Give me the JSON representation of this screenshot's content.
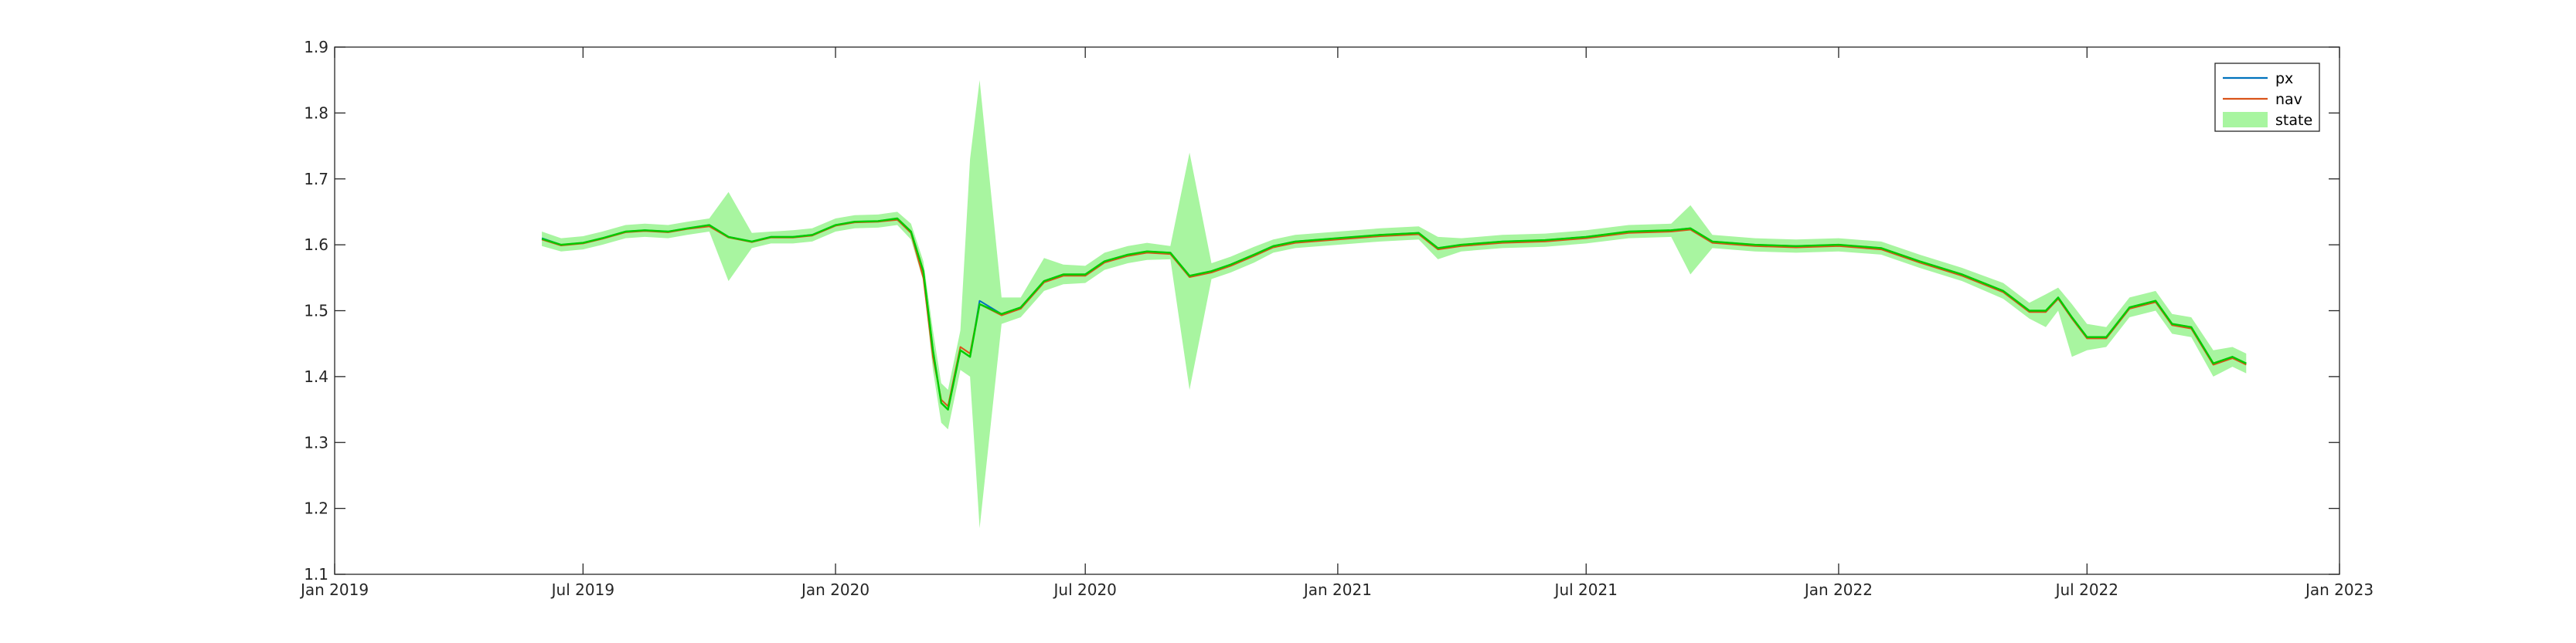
{
  "chart_data": {
    "type": "line",
    "title": "",
    "xlabel": "",
    "ylabel": "",
    "xlim": [
      "2019-01-01",
      "2023-01-01"
    ],
    "ylim": [
      1.1,
      1.9
    ],
    "grid": false,
    "legend_location": "top-right",
    "x_ticks": [
      {
        "date": "2019-01-01",
        "label": "Jan 2019"
      },
      {
        "date": "2019-07-01",
        "label": "Jul 2019"
      },
      {
        "date": "2020-01-01",
        "label": "Jan 2020"
      },
      {
        "date": "2020-07-01",
        "label": "Jul 2020"
      },
      {
        "date": "2021-01-01",
        "label": "Jan 2021"
      },
      {
        "date": "2021-07-01",
        "label": "Jul 2021"
      },
      {
        "date": "2022-01-01",
        "label": "Jan 2022"
      },
      {
        "date": "2022-07-01",
        "label": "Jul 2022"
      },
      {
        "date": "2023-01-01",
        "label": "Jan 2023"
      }
    ],
    "y_ticks": [
      {
        "value": 1.1,
        "label": "1.1"
      },
      {
        "value": 1.2,
        "label": "1.2"
      },
      {
        "value": 1.3,
        "label": "1.3"
      },
      {
        "value": 1.4,
        "label": "1.4"
      },
      {
        "value": 1.5,
        "label": "1.5"
      },
      {
        "value": 1.6,
        "label": "1.6"
      },
      {
        "value": 1.7,
        "label": "1.7"
      },
      {
        "value": 1.8,
        "label": "1.8"
      },
      {
        "value": 1.9,
        "label": "1.9"
      }
    ],
    "series": [
      {
        "name": "px",
        "color": "#0072BD",
        "x": [
          "2019-06-01",
          "2019-06-15",
          "2019-07-01",
          "2019-07-15",
          "2019-08-01",
          "2019-08-15",
          "2019-09-01",
          "2019-09-15",
          "2019-10-01",
          "2019-10-15",
          "2019-11-01",
          "2019-11-15",
          "2019-12-01",
          "2019-12-15",
          "2020-01-01",
          "2020-01-15",
          "2020-02-01",
          "2020-02-15",
          "2020-02-25",
          "2020-03-05",
          "2020-03-12",
          "2020-03-18",
          "2020-03-23",
          "2020-04-01",
          "2020-04-08",
          "2020-04-15",
          "2020-05-01",
          "2020-05-15",
          "2020-06-01",
          "2020-06-15",
          "2020-07-01",
          "2020-07-15",
          "2020-08-01",
          "2020-08-15",
          "2020-09-01",
          "2020-09-15",
          "2020-10-01",
          "2020-10-15",
          "2020-11-01",
          "2020-11-15",
          "2020-12-01",
          "2021-01-01",
          "2021-02-01",
          "2021-03-01",
          "2021-03-15",
          "2021-04-01",
          "2021-05-01",
          "2021-06-01",
          "2021-07-01",
          "2021-08-01",
          "2021-09-01",
          "2021-09-15",
          "2021-10-01",
          "2021-11-01",
          "2021-12-01",
          "2022-01-01",
          "2022-02-01",
          "2022-03-01",
          "2022-04-01",
          "2022-05-01",
          "2022-05-20",
          "2022-06-01",
          "2022-06-10",
          "2022-06-20",
          "2022-07-01",
          "2022-07-15",
          "2022-08-01",
          "2022-08-20",
          "2022-09-01",
          "2022-09-15",
          "2022-10-01",
          "2022-10-15",
          "2022-10-25"
        ],
        "values": [
          1.61,
          1.6,
          1.603,
          1.61,
          1.62,
          1.622,
          1.62,
          1.625,
          1.63,
          1.612,
          1.605,
          1.612,
          1.612,
          1.615,
          1.63,
          1.635,
          1.636,
          1.64,
          1.62,
          1.56,
          1.44,
          1.36,
          1.35,
          1.44,
          1.43,
          1.515,
          1.495,
          1.505,
          1.545,
          1.555,
          1.555,
          1.575,
          1.585,
          1.59,
          1.588,
          1.553,
          1.56,
          1.57,
          1.585,
          1.598,
          1.605,
          1.61,
          1.615,
          1.618,
          1.595,
          1.6,
          1.605,
          1.607,
          1.612,
          1.62,
          1.622,
          1.625,
          1.605,
          1.6,
          1.598,
          1.6,
          1.595,
          1.575,
          1.555,
          1.53,
          1.5,
          1.5,
          1.52,
          1.49,
          1.46,
          1.46,
          1.505,
          1.515,
          1.48,
          1.475,
          1.42,
          1.43,
          1.42
        ]
      },
      {
        "name": "nav",
        "color": "#D95319",
        "x": [
          "2019-06-01",
          "2019-06-15",
          "2019-07-01",
          "2019-07-15",
          "2019-08-01",
          "2019-08-15",
          "2019-09-01",
          "2019-09-15",
          "2019-10-01",
          "2019-10-15",
          "2019-11-01",
          "2019-11-15",
          "2019-12-01",
          "2019-12-15",
          "2020-01-01",
          "2020-01-15",
          "2020-02-01",
          "2020-02-15",
          "2020-02-25",
          "2020-03-05",
          "2020-03-12",
          "2020-03-18",
          "2020-03-23",
          "2020-04-01",
          "2020-04-08",
          "2020-04-15",
          "2020-05-01",
          "2020-05-15",
          "2020-06-01",
          "2020-06-15",
          "2020-07-01",
          "2020-07-15",
          "2020-08-01",
          "2020-08-15",
          "2020-09-01",
          "2020-09-15",
          "2020-10-01",
          "2020-10-15",
          "2020-11-01",
          "2020-11-15",
          "2020-12-01",
          "2021-01-01",
          "2021-02-01",
          "2021-03-01",
          "2021-03-15",
          "2021-04-01",
          "2021-05-01",
          "2021-06-01",
          "2021-07-01",
          "2021-08-01",
          "2021-09-01",
          "2021-09-15",
          "2021-10-01",
          "2021-11-01",
          "2021-12-01",
          "2022-01-01",
          "2022-02-01",
          "2022-03-01",
          "2022-04-01",
          "2022-05-01",
          "2022-05-20",
          "2022-06-01",
          "2022-06-10",
          "2022-06-20",
          "2022-07-01",
          "2022-07-15",
          "2022-08-01",
          "2022-08-20",
          "2022-09-01",
          "2022-09-15",
          "2022-10-01",
          "2022-10-15",
          "2022-10-25"
        ],
        "values": [
          1.608,
          1.599,
          1.602,
          1.609,
          1.619,
          1.621,
          1.619,
          1.624,
          1.628,
          1.611,
          1.604,
          1.611,
          1.611,
          1.614,
          1.629,
          1.634,
          1.635,
          1.638,
          1.618,
          1.55,
          1.43,
          1.365,
          1.355,
          1.445,
          1.435,
          1.51,
          1.493,
          1.503,
          1.543,
          1.553,
          1.553,
          1.573,
          1.583,
          1.588,
          1.586,
          1.551,
          1.558,
          1.568,
          1.583,
          1.596,
          1.603,
          1.608,
          1.613,
          1.616,
          1.593,
          1.598,
          1.603,
          1.605,
          1.61,
          1.618,
          1.62,
          1.623,
          1.603,
          1.598,
          1.596,
          1.598,
          1.593,
          1.573,
          1.553,
          1.528,
          1.498,
          1.498,
          1.518,
          1.488,
          1.458,
          1.458,
          1.503,
          1.513,
          1.478,
          1.473,
          1.418,
          1.428,
          1.418
        ]
      }
    ],
    "band": {
      "name": "state",
      "color": "#A8F5A0",
      "line_color": "#00CC00",
      "x": [
        "2019-06-01",
        "2019-06-15",
        "2019-07-01",
        "2019-07-15",
        "2019-08-01",
        "2019-08-15",
        "2019-09-01",
        "2019-09-15",
        "2019-10-01",
        "2019-10-15",
        "2019-11-01",
        "2019-11-15",
        "2019-12-01",
        "2019-12-15",
        "2020-01-01",
        "2020-01-15",
        "2020-02-01",
        "2020-02-15",
        "2020-02-25",
        "2020-03-05",
        "2020-03-12",
        "2020-03-18",
        "2020-03-23",
        "2020-04-01",
        "2020-04-08",
        "2020-04-15",
        "2020-05-01",
        "2020-05-15",
        "2020-06-01",
        "2020-06-15",
        "2020-07-01",
        "2020-07-15",
        "2020-08-01",
        "2020-08-15",
        "2020-09-01",
        "2020-09-15",
        "2020-10-01",
        "2020-10-15",
        "2020-11-01",
        "2020-11-15",
        "2020-12-01",
        "2021-01-01",
        "2021-02-01",
        "2021-03-01",
        "2021-03-15",
        "2021-04-01",
        "2021-05-01",
        "2021-06-01",
        "2021-07-01",
        "2021-08-01",
        "2021-09-01",
        "2021-09-15",
        "2021-10-01",
        "2021-11-01",
        "2021-12-01",
        "2022-01-01",
        "2022-02-01",
        "2022-03-01",
        "2022-04-01",
        "2022-05-01",
        "2022-05-20",
        "2022-06-01",
        "2022-06-10",
        "2022-06-20",
        "2022-07-01",
        "2022-07-15",
        "2022-08-01",
        "2022-08-20",
        "2022-09-01",
        "2022-09-15",
        "2022-10-01",
        "2022-10-15",
        "2022-10-25"
      ],
      "center": [
        1.609,
        1.6,
        1.603,
        1.61,
        1.62,
        1.622,
        1.62,
        1.625,
        1.63,
        1.612,
        1.605,
        1.612,
        1.612,
        1.615,
        1.63,
        1.635,
        1.636,
        1.64,
        1.62,
        1.56,
        1.44,
        1.36,
        1.35,
        1.44,
        1.43,
        1.51,
        1.495,
        1.505,
        1.545,
        1.555,
        1.555,
        1.575,
        1.585,
        1.59,
        1.588,
        1.553,
        1.56,
        1.57,
        1.585,
        1.598,
        1.605,
        1.61,
        1.615,
        1.618,
        1.595,
        1.6,
        1.605,
        1.607,
        1.612,
        1.62,
        1.622,
        1.625,
        1.605,
        1.6,
        1.598,
        1.6,
        1.595,
        1.575,
        1.555,
        1.53,
        1.5,
        1.5,
        1.52,
        1.49,
        1.46,
        1.46,
        1.505,
        1.515,
        1.48,
        1.475,
        1.42,
        1.43,
        1.42
      ],
      "upper": [
        1.62,
        1.61,
        1.613,
        1.62,
        1.63,
        1.632,
        1.63,
        1.635,
        1.64,
        1.68,
        1.618,
        1.62,
        1.622,
        1.625,
        1.64,
        1.645,
        1.646,
        1.65,
        1.632,
        1.575,
        1.47,
        1.39,
        1.38,
        1.47,
        1.73,
        1.85,
        1.52,
        1.52,
        1.58,
        1.57,
        1.568,
        1.588,
        1.598,
        1.603,
        1.598,
        1.74,
        1.572,
        1.582,
        1.597,
        1.608,
        1.615,
        1.62,
        1.625,
        1.628,
        1.612,
        1.61,
        1.615,
        1.617,
        1.622,
        1.63,
        1.632,
        1.66,
        1.615,
        1.61,
        1.608,
        1.61,
        1.605,
        1.585,
        1.565,
        1.542,
        1.512,
        1.525,
        1.535,
        1.51,
        1.48,
        1.475,
        1.52,
        1.53,
        1.495,
        1.49,
        1.44,
        1.445,
        1.435
      ],
      "lower": [
        1.598,
        1.59,
        1.593,
        1.6,
        1.61,
        1.612,
        1.61,
        1.615,
        1.62,
        1.545,
        1.595,
        1.602,
        1.602,
        1.605,
        1.62,
        1.625,
        1.626,
        1.63,
        1.608,
        1.545,
        1.41,
        1.33,
        1.32,
        1.41,
        1.4,
        1.17,
        1.48,
        1.49,
        1.53,
        1.54,
        1.542,
        1.562,
        1.572,
        1.577,
        1.578,
        1.38,
        1.548,
        1.558,
        1.573,
        1.588,
        1.595,
        1.6,
        1.605,
        1.608,
        1.578,
        1.59,
        1.595,
        1.597,
        1.602,
        1.61,
        1.612,
        1.555,
        1.595,
        1.59,
        1.588,
        1.59,
        1.585,
        1.565,
        1.545,
        1.518,
        1.488,
        1.475,
        1.5,
        1.43,
        1.44,
        1.445,
        1.49,
        1.5,
        1.465,
        1.46,
        1.4,
        1.415,
        1.405
      ]
    }
  }
}
